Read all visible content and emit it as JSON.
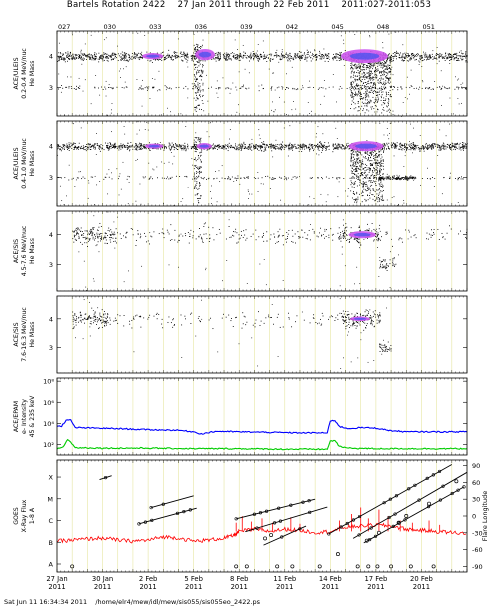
{
  "title": "Bartels Rotation 2422    27 Jan 2011 through 22 Feb 2011    2011:027-2011:053",
  "footer": "Sat Jun 11 16:34:34 2011    /home/elr4/mew/idl/mew/sis055/sis055eo_2422.ps",
  "chart_data": {
    "type": "scatter",
    "x_range_days": [
      0,
      27
    ],
    "doy_ticks": [
      {
        "day": 0,
        "label": "027"
      },
      {
        "day": 3,
        "label": "030"
      },
      {
        "day": 6,
        "label": "033"
      },
      {
        "day": 9,
        "label": "036"
      },
      {
        "day": 12,
        "label": "039"
      },
      {
        "day": 15,
        "label": "042"
      },
      {
        "day": 18,
        "label": "045"
      },
      {
        "day": 21,
        "label": "048"
      },
      {
        "day": 24,
        "label": "051"
      }
    ],
    "date_ticks": [
      {
        "day": 0,
        "label": "27 Jan",
        "year": "2011"
      },
      {
        "day": 3,
        "label": "30 Jan",
        "year": "2011"
      },
      {
        "day": 6,
        "label": "2 Feb",
        "year": "2011"
      },
      {
        "day": 9,
        "label": "5 Feb",
        "year": "2011"
      },
      {
        "day": 12,
        "label": "8 Feb",
        "year": "2011"
      },
      {
        "day": 15,
        "label": "11 Feb",
        "year": "2011"
      },
      {
        "day": 18,
        "label": "14 Feb",
        "year": "2011"
      },
      {
        "day": 21,
        "label": "17 Feb",
        "year": "2011"
      },
      {
        "day": 24,
        "label": "20 Feb",
        "year": "2011"
      }
    ],
    "panels": [
      {
        "id": "p1",
        "ylabel": [
          "ACE/ULEIS",
          "0.2-0.4 MeV/nuc",
          "He Mass"
        ],
        "yticks": [
          {
            "v": 3,
            "label": "3"
          },
          {
            "v": 4,
            "label": "4"
          }
        ],
        "ylim": [
          2.1,
          4.8
        ],
        "bands": [
          {
            "y": 4.0,
            "spread": 0.12,
            "start": 0,
            "end": 27,
            "density": 1.0
          },
          {
            "y": 3.0,
            "spread": 0.06,
            "start": 0,
            "end": 27,
            "density": 0.15
          }
        ],
        "scatter_clouds": [
          {
            "start": 9,
            "end": 9.6,
            "y0": 2.2,
            "y1": 4.4,
            "density": 1.0
          },
          {
            "start": 19.3,
            "end": 22,
            "y0": 2.2,
            "y1": 4.1,
            "density": 1.0
          }
        ],
        "purple_regions": [
          {
            "start": 5.6,
            "end": 7.0,
            "y": 4.0,
            "h": 0.1
          },
          {
            "start": 9.1,
            "end": 10.4,
            "y": 4.05,
            "h": 0.18
          },
          {
            "start": 18.7,
            "end": 21.8,
            "y": 4.0,
            "h": 0.22
          }
        ],
        "gaps": [
          {
            "start": 8.65,
            "end": 8.8
          },
          {
            "start": 10.8,
            "end": 10.9
          },
          {
            "start": 17.95,
            "end": 18.1
          }
        ]
      },
      {
        "id": "p2",
        "ylabel": [
          "ACE/ULEIS",
          "0.4-1.0 MeV/nuc",
          "He Mass"
        ],
        "yticks": [
          {
            "v": 3,
            "label": "3"
          },
          {
            "v": 4,
            "label": "4"
          }
        ],
        "ylim": [
          2.1,
          4.8
        ],
        "bands": [
          {
            "y": 4.0,
            "spread": 0.1,
            "start": 0,
            "end": 27,
            "density": 1.0
          },
          {
            "y": 3.0,
            "spread": 0.05,
            "start": 0,
            "end": 27,
            "density": 0.12
          },
          {
            "y": 3.0,
            "spread": 0.05,
            "start": 21.2,
            "end": 23.6,
            "density": 1.0
          }
        ],
        "scatter_clouds": [
          {
            "start": 9,
            "end": 9.5,
            "y0": 2.2,
            "y1": 4.3,
            "density": 0.8
          },
          {
            "start": 19.3,
            "end": 21.5,
            "y0": 2.2,
            "y1": 4.0,
            "density": 0.9
          }
        ],
        "purple_regions": [
          {
            "start": 5.8,
            "end": 7.0,
            "y": 4.0,
            "h": 0.08
          },
          {
            "start": 9.2,
            "end": 10.2,
            "y": 4.0,
            "h": 0.1
          },
          {
            "start": 19.2,
            "end": 21.5,
            "y": 4.0,
            "h": 0.16
          }
        ],
        "gaps": [
          {
            "start": 8.65,
            "end": 8.8
          },
          {
            "start": 17.95,
            "end": 18.1
          }
        ]
      },
      {
        "id": "p3",
        "ylabel": [
          "ACE/SIS",
          "4.5-7.6 MeV/nuc",
          "He Mass"
        ],
        "yticks": [
          {
            "v": 3,
            "label": "3"
          },
          {
            "v": 4,
            "label": "4"
          }
        ],
        "ylim": [
          2.1,
          4.8
        ],
        "bands": [
          {
            "y": 4.0,
            "spread": 0.25,
            "start": 1.0,
            "end": 3.8,
            "density": 1.0
          },
          {
            "y": 4.0,
            "spread": 0.25,
            "start": 3.8,
            "end": 18.5,
            "density": 0.25
          },
          {
            "y": 4.0,
            "spread": 0.3,
            "start": 18.5,
            "end": 21.3,
            "density": 1.0
          },
          {
            "y": 4.0,
            "spread": 0.25,
            "start": 21.3,
            "end": 27,
            "density": 0.15
          },
          {
            "y": 3.0,
            "spread": 0.2,
            "start": 21.2,
            "end": 22.3,
            "density": 0.7
          }
        ],
        "scatter_clouds": [],
        "purple_regions": [
          {
            "start": 19.2,
            "end": 21.0,
            "y": 4.0,
            "h": 0.12
          }
        ],
        "gaps": [
          {
            "start": 0,
            "end": 0.9
          }
        ]
      },
      {
        "id": "p4",
        "ylabel": [
          "ACE/SIS",
          "7.6-16.3 MeV/nuc",
          "He Mass"
        ],
        "yticks": [
          {
            "v": 3,
            "label": "3"
          },
          {
            "v": 4,
            "label": "4"
          }
        ],
        "ylim": [
          2.1,
          4.8
        ],
        "bands": [
          {
            "y": 4.0,
            "spread": 0.25,
            "start": 1.0,
            "end": 3.5,
            "density": 0.9
          },
          {
            "y": 4.0,
            "spread": 0.25,
            "start": 3.5,
            "end": 18.5,
            "density": 0.15
          },
          {
            "y": 4.0,
            "spread": 0.25,
            "start": 18.5,
            "end": 21.3,
            "density": 1.0
          },
          {
            "y": 3.0,
            "spread": 0.15,
            "start": 21.2,
            "end": 22.0,
            "density": 0.8
          }
        ],
        "scatter_clouds": [],
        "purple_regions": [
          {
            "start": 19.3,
            "end": 20.6,
            "y": 4.0,
            "h": 0.08
          }
        ],
        "gaps": [
          {
            "start": 0,
            "end": 0.9
          }
        ]
      }
    ],
    "epam": {
      "ylabel": [
        "ACE/EPAM",
        "e- Intensity",
        "45 & 235 keV"
      ],
      "ylog_range": [
        1.0,
        8.3
      ],
      "yticks": [
        {
          "v": 2,
          "label": "10²"
        },
        {
          "v": 4,
          "label": "10⁴"
        },
        {
          "v": 6,
          "label": "10⁶"
        },
        {
          "v": 8,
          "label": "10⁸"
        }
      ],
      "series": [
        {
          "color": "#0000ff",
          "points": [
            [
              0,
              3.7
            ],
            [
              0.3,
              3.75
            ],
            [
              0.6,
              4.3
            ],
            [
              0.9,
              4.3
            ],
            [
              1.2,
              3.6
            ],
            [
              2.5,
              3.55
            ],
            [
              4,
              3.5
            ],
            [
              6,
              3.4
            ],
            [
              8,
              3.35
            ],
            [
              9,
              3.2
            ],
            [
              9.5,
              3.0
            ],
            [
              10.5,
              3.25
            ],
            [
              12,
              3.2
            ],
            [
              14,
              3.15
            ],
            [
              16,
              3.1
            ],
            [
              17.8,
              3.1
            ],
            [
              18.0,
              4.2
            ],
            [
              18.3,
              4.3
            ],
            [
              18.6,
              3.7
            ],
            [
              19.2,
              3.5
            ],
            [
              20,
              3.6
            ],
            [
              21,
              3.55
            ],
            [
              22,
              3.3
            ],
            [
              23,
              3.2
            ],
            [
              25,
              3.2
            ],
            [
              27,
              3.2
            ]
          ]
        },
        {
          "color": "#00cc00",
          "points": [
            [
              0,
              1.6
            ],
            [
              0.4,
              1.75
            ],
            [
              0.7,
              2.5
            ],
            [
              0.9,
              2.2
            ],
            [
              1.2,
              1.7
            ],
            [
              3,
              1.65
            ],
            [
              6,
              1.65
            ],
            [
              9,
              1.6
            ],
            [
              12,
              1.6
            ],
            [
              15,
              1.55
            ],
            [
              17.8,
              1.55
            ],
            [
              18.0,
              2.3
            ],
            [
              18.3,
              2.4
            ],
            [
              18.6,
              1.8
            ],
            [
              19.2,
              1.65
            ],
            [
              21,
              1.6
            ],
            [
              24,
              1.6
            ],
            [
              27,
              1.6
            ]
          ]
        }
      ]
    },
    "goes": {
      "ylabel": [
        "GOES",
        "X-Ray Flux",
        "1-8 A"
      ],
      "class_ticks": [
        {
          "v": 0,
          "label": "A"
        },
        {
          "v": 1,
          "label": "B"
        },
        {
          "v": 2,
          "label": "C"
        },
        {
          "v": 3,
          "label": "M"
        },
        {
          "v": 4,
          "label": "X"
        }
      ],
      "right_label": "Flare Longitude",
      "right_ticks": [
        {
          "v": -90,
          "label": "-90"
        },
        {
          "v": -60,
          "label": "-60"
        },
        {
          "v": -30,
          "label": "-30"
        },
        {
          "v": 0,
          "label": "0"
        },
        {
          "v": 30,
          "label": "30"
        },
        {
          "v": 60,
          "label": "60"
        },
        {
          "v": 90,
          "label": "90"
        }
      ],
      "right_range": [
        -100,
        100
      ],
      "xray_points": [
        [
          0,
          1.05
        ],
        [
          1,
          1.1
        ],
        [
          2,
          1.15
        ],
        [
          3,
          1.2
        ],
        [
          4,
          1.1
        ],
        [
          5,
          1.05
        ],
        [
          6,
          1.1
        ],
        [
          7,
          1.25
        ],
        [
          8,
          1.2
        ],
        [
          9,
          1.05
        ],
        [
          10,
          1.1
        ],
        [
          11,
          1.2
        ],
        [
          11.6,
          1.3
        ],
        [
          12,
          1.5
        ],
        [
          13,
          1.6
        ],
        [
          14,
          1.5
        ],
        [
          15,
          1.6
        ],
        [
          16,
          1.55
        ],
        [
          17,
          1.45
        ],
        [
          18,
          1.5
        ],
        [
          19,
          1.7
        ],
        [
          20,
          1.75
        ],
        [
          21,
          1.8
        ],
        [
          22,
          1.75
        ],
        [
          23,
          1.6
        ],
        [
          24,
          1.55
        ],
        [
          25,
          1.5
        ],
        [
          26,
          1.45
        ],
        [
          27,
          1.4
        ]
      ],
      "flare_spikes": [
        [
          11.8,
          1.9
        ],
        [
          12.2,
          2.2
        ],
        [
          12.8,
          1.95
        ],
        [
          13.5,
          2.1
        ],
        [
          14.2,
          1.9
        ],
        [
          15.4,
          2.15
        ],
        [
          16.0,
          1.85
        ],
        [
          18.6,
          2.0
        ],
        [
          19.4,
          2.3
        ],
        [
          20.0,
          2.6
        ],
        [
          20.5,
          2.1
        ],
        [
          21.2,
          2.5
        ],
        [
          21.8,
          2.2
        ],
        [
          22.6,
          2.0
        ],
        [
          23.4,
          1.9
        ],
        [
          24.5,
          2.0
        ],
        [
          25.2,
          1.8
        ]
      ],
      "longitude_tracks": [
        [
          [
            2.8,
            65
          ],
          [
            3.6,
            72
          ]
        ],
        [
          [
            5.4,
            -14
          ],
          [
            9.2,
            14
          ]
        ],
        [
          [
            6.2,
            15
          ],
          [
            9.0,
            36
          ]
        ],
        [
          [
            11.8,
            -5
          ],
          [
            17.0,
            30
          ]
        ],
        [
          [
            12.4,
            -28
          ],
          [
            17.8,
            16
          ]
        ],
        [
          [
            13.6,
            -52
          ],
          [
            16.4,
            -18
          ]
        ],
        [
          [
            17.9,
            -32
          ],
          [
            26.0,
            92
          ]
        ],
        [
          [
            19.5,
            -40
          ],
          [
            27,
            78
          ]
        ],
        [
          [
            20.2,
            -48
          ],
          [
            26.8,
            52
          ]
        ]
      ],
      "flare_markers": [
        [
          1.0,
          -90
        ],
        [
          11.8,
          -90
        ],
        [
          12.5,
          -90
        ],
        [
          14.5,
          -90
        ],
        [
          15.5,
          -90
        ],
        [
          17.3,
          -90
        ],
        [
          19.8,
          -90
        ],
        [
          20.5,
          -90
        ],
        [
          21.1,
          -90
        ],
        [
          22.0,
          -90
        ],
        [
          23.3,
          -90
        ],
        [
          24.8,
          -90
        ],
        [
          18.5,
          -68
        ],
        [
          20.4,
          -44
        ],
        [
          21.2,
          -30
        ],
        [
          22.5,
          -12
        ],
        [
          23.0,
          0
        ],
        [
          24.5,
          22
        ],
        [
          26.3,
          62
        ],
        [
          13.7,
          -40
        ],
        [
          14.1,
          -34
        ]
      ]
    }
  }
}
